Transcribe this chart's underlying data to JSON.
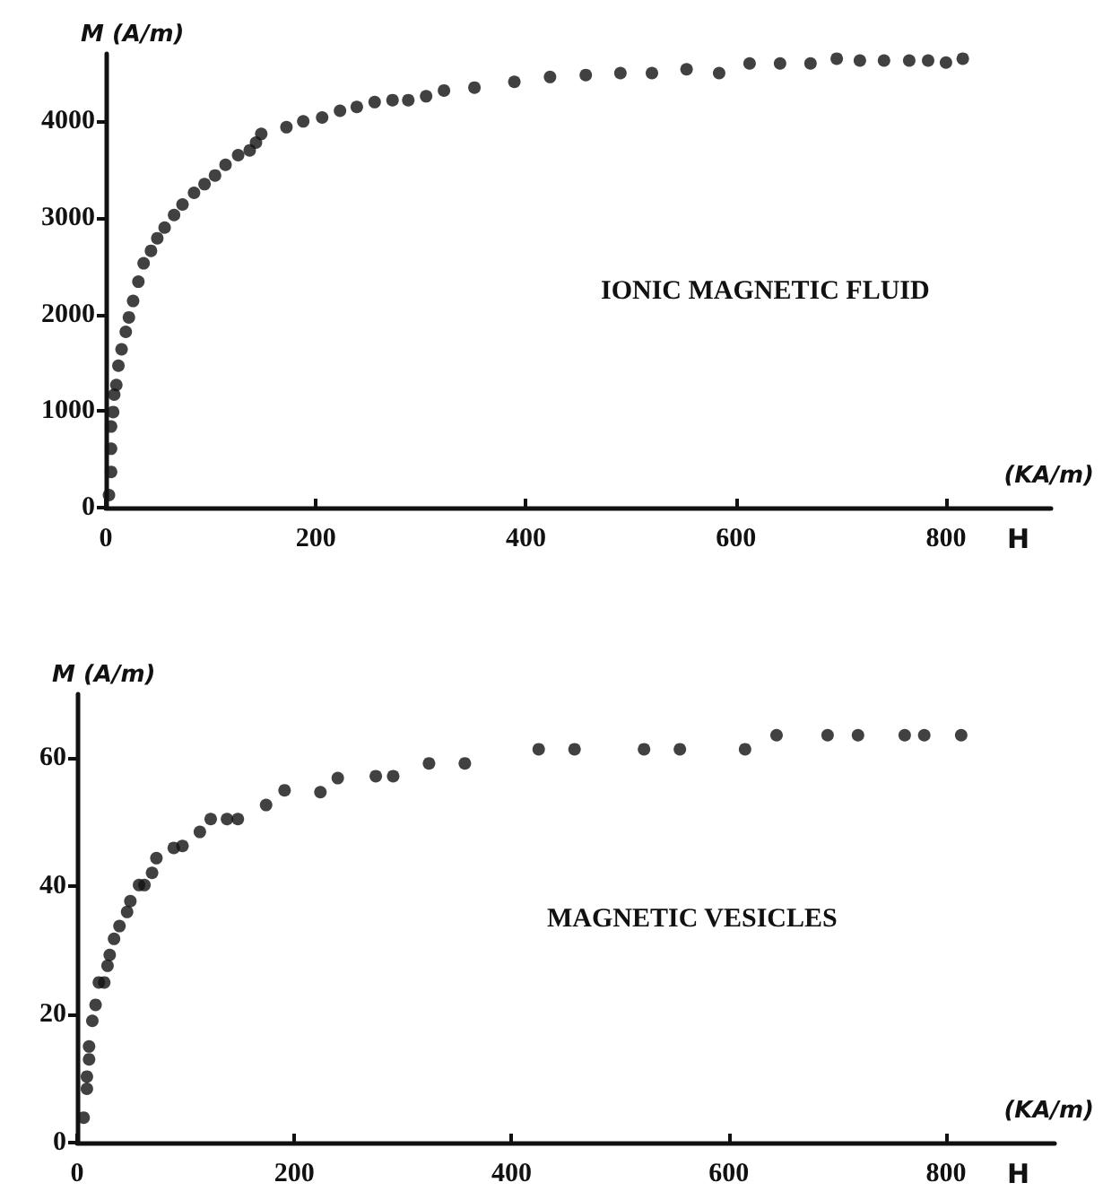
{
  "chart_data": [
    {
      "type": "scatter",
      "title": "IONIC MAGNETIC FLUID",
      "xlabel": "H",
      "ylabel": "M (A/m)",
      "annotations": [
        "(KA/m)"
      ],
      "marker": "circle",
      "grid": false,
      "xlim": [
        0,
        900
      ],
      "ylim": [
        0,
        4700
      ],
      "xticks": [
        0,
        200,
        400,
        600,
        800
      ],
      "yticks": [
        0,
        1000,
        2000,
        3000,
        4000
      ],
      "x": [
        3,
        5,
        5,
        5,
        7,
        8,
        10,
        12,
        15,
        19,
        22,
        26,
        31,
        36,
        43,
        49,
        56,
        65,
        73,
        84,
        94,
        104,
        114,
        126,
        137,
        143,
        148,
        172,
        188,
        206,
        223,
        239,
        256,
        273,
        288,
        305,
        322,
        351,
        389,
        423,
        457,
        490,
        520,
        553,
        584,
        613,
        642,
        671,
        696,
        718,
        741,
        765,
        783,
        800,
        816
      ],
      "series": [
        {
          "color": "#111111",
          "values": [
            130,
            370,
            610,
            840,
            990,
            1170,
            1270,
            1470,
            1640,
            1820,
            1970,
            2140,
            2340,
            2530,
            2660,
            2790,
            2900,
            3030,
            3140,
            3260,
            3350,
            3440,
            3550,
            3650,
            3700,
            3780,
            3870,
            3940,
            4000,
            4040,
            4110,
            4150,
            4200,
            4220,
            4220,
            4260,
            4320,
            4350,
            4410,
            4460,
            4480,
            4500,
            4500,
            4540,
            4500,
            4600,
            4600,
            4600,
            4650,
            4630,
            4630,
            4630,
            4630,
            4610,
            4650
          ]
        }
      ]
    },
    {
      "type": "scatter",
      "title": "MAGNETIC VESICLES",
      "xlabel": "H",
      "ylabel": "M (A/m)",
      "annotations": [
        "(KA/m)"
      ],
      "marker": "circle",
      "grid": false,
      "xlim": [
        0,
        900
      ],
      "ylim": [
        0,
        70
      ],
      "xticks": [
        0,
        200,
        400,
        600,
        800
      ],
      "yticks": [
        0,
        20,
        40,
        60
      ],
      "x": [
        6,
        9,
        9,
        11,
        11,
        14,
        17,
        20,
        25,
        28,
        30,
        34,
        39,
        46,
        49,
        57,
        62,
        69,
        73,
        89,
        97,
        113,
        123,
        138,
        148,
        174,
        191,
        224,
        240,
        275,
        291,
        324,
        357,
        425,
        458,
        522,
        555,
        615,
        644,
        691,
        719,
        762,
        780,
        814
      ],
      "series": [
        {
          "color": "#111111",
          "values": [
            3.9,
            8.4,
            10.3,
            13,
            15,
            19,
            21.5,
            25,
            25,
            27.6,
            29.3,
            31.8,
            33.8,
            36,
            37.7,
            40.2,
            40.2,
            42.1,
            44.4,
            46,
            46.3,
            48.5,
            50.5,
            50.5,
            50.5,
            52.7,
            55,
            54.7,
            56.9,
            57.2,
            57.2,
            59.2,
            59.2,
            61.4,
            61.4,
            61.4,
            61.4,
            61.4,
            63.6,
            63.6,
            63.6,
            63.6,
            63.6,
            63.6
          ]
        }
      ]
    }
  ]
}
